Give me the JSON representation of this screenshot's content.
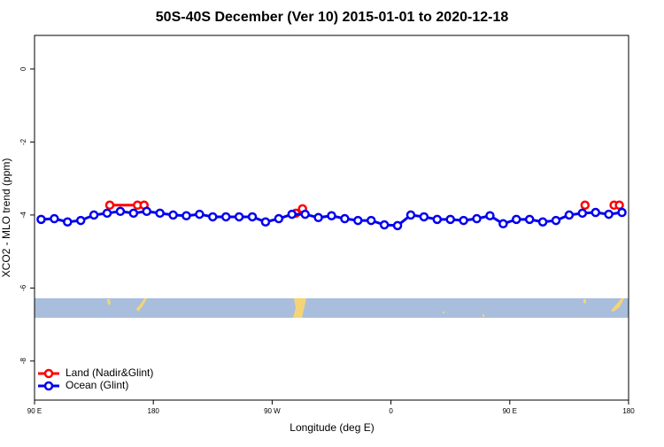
{
  "chart_data": {
    "type": "line",
    "title": "50S-40S December (Ver 10)   2015-01-01 to 2020-12-18",
    "xlabel": "Longitude (deg E)",
    "ylabel": "XCO2 - MLO trend (ppm)",
    "xlim": [
      90,
      540
    ],
    "xticks": [
      {
        "value": 90,
        "label": "90 E"
      },
      180,
      {
        "value": 270,
        "label": "90 W"
      },
      {
        "value": 360,
        "label": "0"
      },
      {
        "value": 450,
        "label": "90 E"
      },
      {
        "value": 540,
        "label": "180"
      }
    ],
    "ylim": [
      -9.07,
      0.92
    ],
    "yticks": [
      0,
      -2,
      -4,
      -6,
      -8
    ],
    "legend": "bottom-left",
    "series": [
      {
        "name": "Land (Nadir&Glint)",
        "color": "#ff0000",
        "x": [
          147,
          168,
          173,
          230,
          288,
          293,
          400,
          507,
          518,
          529,
          533
        ],
        "values": [
          -3.73,
          -3.73,
          -3.73,
          null,
          -3.95,
          -3.83,
          null,
          -3.73,
          null,
          -3.73,
          -3.73
        ]
      },
      {
        "name": "Ocean (Glint)",
        "color": "#0000ee",
        "x": [
          95,
          105,
          115,
          125,
          135,
          145,
          155,
          165,
          175,
          185,
          195,
          205,
          215,
          225,
          235,
          245,
          255,
          265,
          275,
          285,
          295,
          305,
          315,
          325,
          335,
          345,
          355,
          365,
          375,
          385,
          395,
          405,
          415,
          425,
          435,
          445,
          455,
          465,
          475,
          485,
          495,
          505,
          515,
          525,
          535
        ],
        "values": [
          -4.12,
          -4.1,
          -4.19,
          -4.15,
          -4.0,
          -3.95,
          -3.9,
          -3.95,
          -3.9,
          -3.95,
          -4.0,
          -4.02,
          -3.98,
          -4.05,
          -4.05,
          -4.05,
          -4.05,
          -4.19,
          -4.1,
          -3.98,
          -3.98,
          -4.07,
          -4.02,
          -4.1,
          -4.15,
          -4.15,
          -4.27,
          -4.29,
          -4.0,
          -4.05,
          -4.12,
          -4.12,
          -4.15,
          -4.1,
          -4.02,
          -4.24,
          -4.12,
          -4.12,
          -4.19,
          -4.15,
          -4.0,
          -3.95,
          -3.93,
          -3.98,
          -3.93
        ]
      }
    ]
  }
}
